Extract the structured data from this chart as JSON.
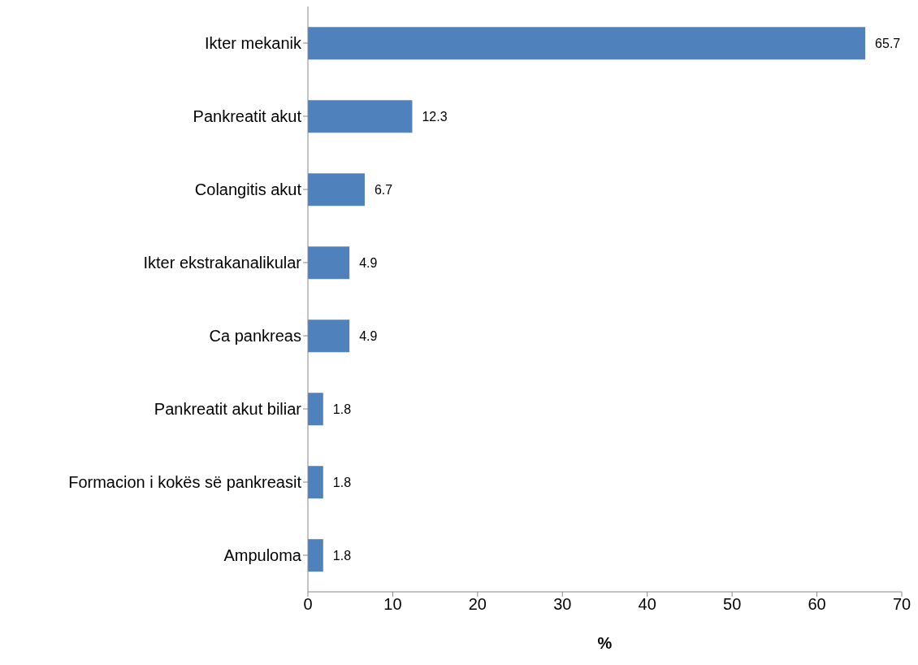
{
  "chart_data": {
    "type": "bar",
    "orientation": "horizontal",
    "xlabel": "%",
    "categories": [
      "Ikter mekanik",
      "Pankreatit akut",
      "Colangitis akut",
      "Ikter ekstrakanalikular",
      "Ca pankreas",
      "Pankreatit akut biliar",
      "Formacion i kokës së pankreasit",
      "Ampuloma"
    ],
    "values": [
      65.7,
      12.3,
      6.7,
      4.9,
      4.9,
      1.8,
      1.8,
      1.8
    ],
    "color": "#4f81bd",
    "xlim": [
      0,
      70
    ],
    "xticks": [
      0,
      10,
      20,
      30,
      40,
      50,
      60,
      70
    ],
    "data_labels": true,
    "grid": false,
    "legend": false
  }
}
